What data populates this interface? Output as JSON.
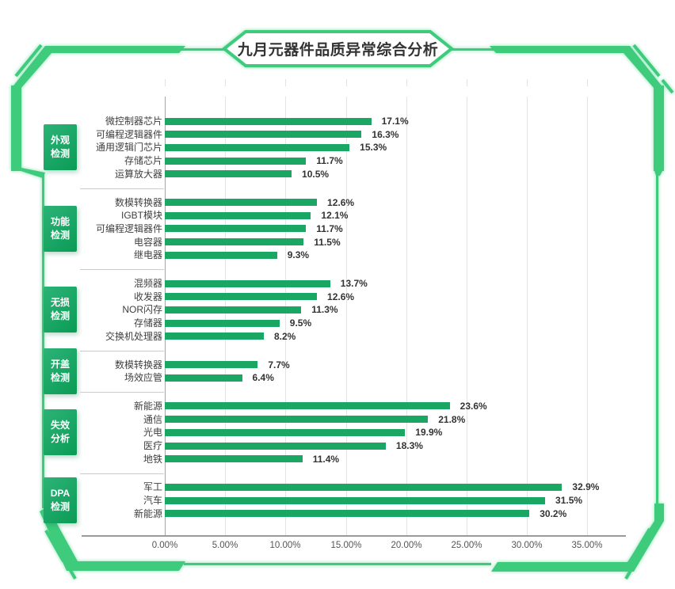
{
  "title": "九月元器件品质异常综合分析",
  "colors": {
    "frame_green": "#3ecb7c",
    "bar_green": "#1aa764",
    "badge_gradient_from": "#2cb377",
    "badge_gradient_to": "#0b9b56",
    "title_text": "#333333"
  },
  "chart_data": {
    "type": "bar",
    "orientation": "horizontal",
    "title": "九月元器件品质异常综合分析",
    "value_unit": "%",
    "x_axis": {
      "min": 0,
      "max": 35,
      "tick_labels": [
        "0.00%",
        "5.00%",
        "10.00%",
        "15.00%",
        "20.00%",
        "25.00%",
        "30.00%",
        "35.00%"
      ]
    },
    "grid": true,
    "groups": [
      {
        "category": "外观检测",
        "badge_lines": [
          "外观",
          "检测"
        ],
        "items": [
          {
            "label": "微控制器芯片",
            "value": 17.1
          },
          {
            "label": "可编程逻辑器件",
            "value": 16.3
          },
          {
            "label": "通用逻辑门芯片",
            "value": 15.3
          },
          {
            "label": "存储芯片",
            "value": 11.7
          },
          {
            "label": "运算放大器",
            "value": 10.5
          }
        ]
      },
      {
        "category": "功能检测",
        "badge_lines": [
          "功能",
          "检测"
        ],
        "items": [
          {
            "label": "数模转换器",
            "value": 12.6
          },
          {
            "label": "IGBT模块",
            "value": 12.1
          },
          {
            "label": "可编程逻辑器件",
            "value": 11.7
          },
          {
            "label": "电容器",
            "value": 11.5
          },
          {
            "label": "继电器",
            "value": 9.3
          }
        ]
      },
      {
        "category": "无损检测",
        "badge_lines": [
          "无损",
          "检测"
        ],
        "items": [
          {
            "label": "混频器",
            "value": 13.7
          },
          {
            "label": "收发器",
            "value": 12.6
          },
          {
            "label": "NOR闪存",
            "value": 11.3
          },
          {
            "label": "存储器",
            "value": 9.5
          },
          {
            "label": "交换机处理器",
            "value": 8.2
          }
        ]
      },
      {
        "category": "开盖检测",
        "badge_lines": [
          "开盖",
          "检测"
        ],
        "items": [
          {
            "label": "数模转换器",
            "value": 7.7
          },
          {
            "label": "场效应管",
            "value": 6.4
          }
        ]
      },
      {
        "category": "失效分析",
        "badge_lines": [
          "失效",
          "分析"
        ],
        "items": [
          {
            "label": "新能源",
            "value": 23.6
          },
          {
            "label": "通信",
            "value": 21.8
          },
          {
            "label": "光电",
            "value": 19.9
          },
          {
            "label": "医疗",
            "value": 18.3
          },
          {
            "label": "地铁",
            "value": 11.4
          }
        ]
      },
      {
        "category": "DPA检测",
        "badge_lines": [
          "DPA",
          "检测"
        ],
        "items": [
          {
            "label": "军工",
            "value": 32.9
          },
          {
            "label": "汽车",
            "value": 31.5
          },
          {
            "label": "新能源",
            "value": 30.2
          }
        ]
      }
    ]
  }
}
